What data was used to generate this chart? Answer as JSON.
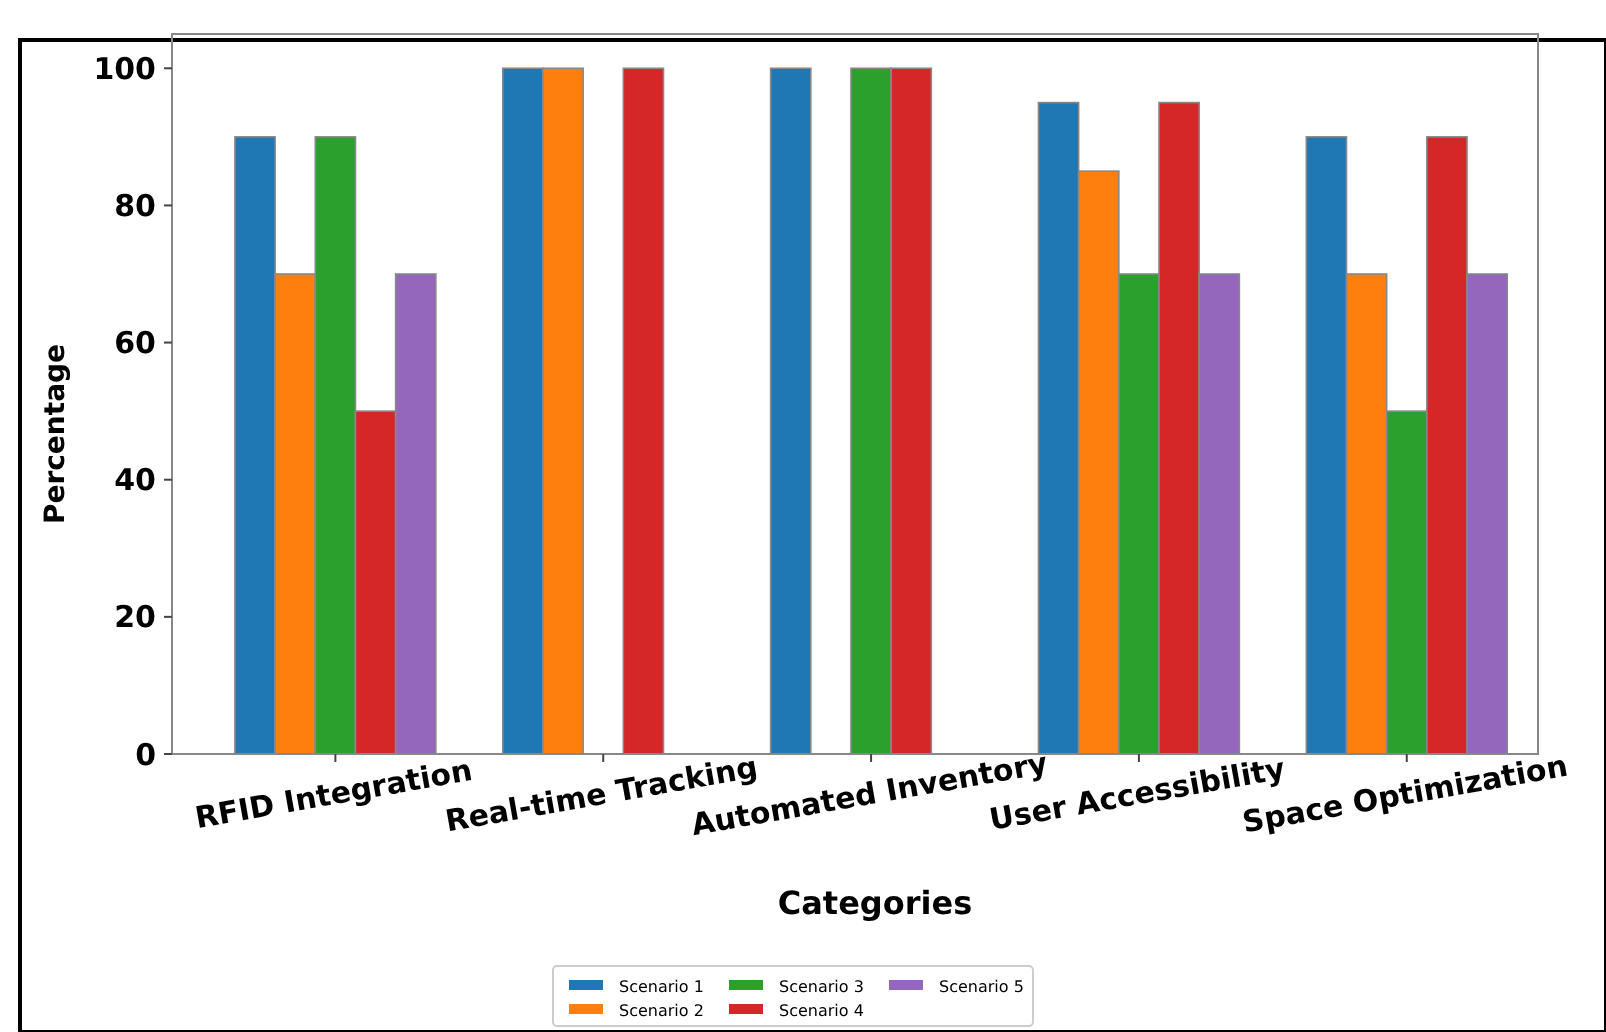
{
  "chart_data": {
    "type": "bar",
    "xlabel": "Categories",
    "ylabel": "Percentage",
    "categories": [
      "RFID Integration",
      "Real-time Tracking",
      "Automated Inventory",
      "User Accessibility",
      "Space Optimization"
    ],
    "series": [
      {
        "name": "Scenario 1",
        "color": "#1f77b4",
        "values": [
          90,
          100,
          100,
          95,
          90
        ]
      },
      {
        "name": "Scenario 2",
        "color": "#ff7f0e",
        "values": [
          70,
          100,
          0,
          85,
          70
        ]
      },
      {
        "name": "Scenario 3",
        "color": "#2ca02c",
        "values": [
          90,
          0,
          100,
          70,
          50
        ]
      },
      {
        "name": "Scenario 4",
        "color": "#d62728",
        "values": [
          50,
          100,
          100,
          95,
          90
        ]
      },
      {
        "name": "Scenario 5",
        "color": "#9467bd",
        "values": [
          70,
          0,
          0,
          70,
          70
        ]
      }
    ],
    "ylim": [
      0,
      105
    ],
    "yticks": [
      0,
      20,
      40,
      60,
      80,
      100
    ],
    "grid": false,
    "legend": "bottom"
  }
}
